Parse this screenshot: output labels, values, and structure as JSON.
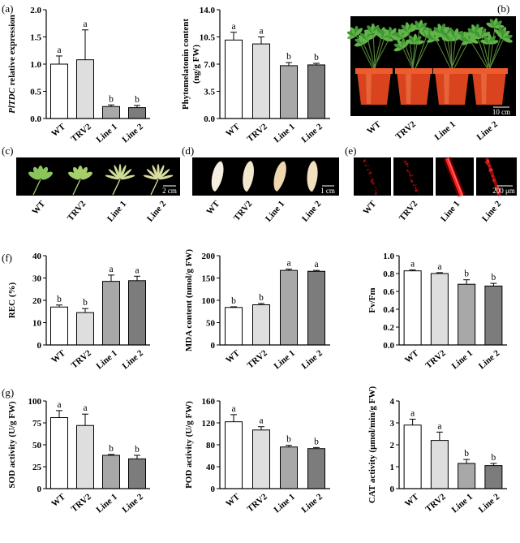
{
  "panel_labels": [
    "(a)",
    "(b)",
    "(c)",
    "(d)",
    "(e)",
    "(f)",
    "(g)"
  ],
  "bar_colors": [
    "#ffffff",
    "#dedede",
    "#a8a8a8",
    "#7c7c7c"
  ],
  "photos": {
    "b": {
      "labels": [
        "WT",
        "TRV2",
        "Line 1",
        "Line 2"
      ],
      "scale": "10 cm"
    },
    "c": {
      "labels": [
        "WT",
        "TRV2",
        "Line 1",
        "Line 2"
      ],
      "scale": "2 cm"
    },
    "d": {
      "labels": [
        "WT",
        "TRV2",
        "Line 1",
        "Line 2"
      ],
      "scale": "1 cm"
    },
    "e": {
      "labels": [
        "WT",
        "TRV2",
        "Line 1",
        "Line 2"
      ],
      "scale": "200 μm"
    }
  },
  "chart_data": [
    {
      "type": "bar",
      "categories": [
        "WT",
        "TRV2",
        "Line 1",
        "Line 2"
      ],
      "values": [
        1.0,
        1.08,
        0.22,
        0.2
      ],
      "errors": [
        0.15,
        0.55,
        0.03,
        0.04
      ],
      "letters": [
        "a",
        "a",
        "b",
        "b"
      ],
      "ylabel": [
        [
          {
            "t": "PlTDC",
            "i": true
          },
          {
            "t": " relative expression"
          }
        ]
      ],
      "ylim": [
        0,
        2.0
      ],
      "yticks": [
        "0.0",
        "0.5",
        "1.0",
        "1.5",
        "2.0"
      ]
    },
    {
      "type": "bar",
      "categories": [
        "WT",
        "TRV2",
        "Line 1",
        "Line 2"
      ],
      "values": [
        10.1,
        9.6,
        6.8,
        6.9
      ],
      "errors": [
        1.0,
        0.9,
        0.4,
        0.2
      ],
      "letters": [
        "a",
        "a",
        "b",
        "b"
      ],
      "ylabel": [
        [
          {
            "t": "Phytomelatonin content"
          }
        ],
        [
          {
            "t": "(ng/g FW)"
          }
        ]
      ],
      "ylim": [
        0,
        14.0
      ],
      "yticks": [
        "0.0",
        "3.5",
        "7.0",
        "10.5",
        "14.0"
      ]
    },
    {
      "type": "bar",
      "categories": [
        "WT",
        "TRV2",
        "Line 1",
        "Line 2"
      ],
      "values": [
        17.0,
        14.5,
        28.5,
        28.8
      ],
      "errors": [
        0.9,
        1.8,
        2.8,
        2.0
      ],
      "letters": [
        "b",
        "b",
        "a",
        "a"
      ],
      "ylabel": [
        [
          {
            "t": "REC (%)"
          }
        ]
      ],
      "ylim": [
        0,
        40
      ],
      "yticks": [
        "0",
        "10",
        "20",
        "30",
        "40"
      ]
    },
    {
      "type": "bar",
      "categories": [
        "WT",
        "TRV2",
        "Line 1",
        "Line 2"
      ],
      "values": [
        84,
        90,
        167,
        165
      ],
      "errors": [
        1.5,
        3,
        3,
        2
      ],
      "letters": [
        "b",
        "b",
        "a",
        "a"
      ],
      "ylabel": [
        [
          {
            "t": "MDA content (nmol/g FW)"
          }
        ]
      ],
      "ylim": [
        0,
        200
      ],
      "yticks": [
        "0",
        "50",
        "100",
        "150",
        "200"
      ]
    },
    {
      "type": "bar",
      "categories": [
        "WT",
        "TRV2",
        "Line 1",
        "Line 2"
      ],
      "values": [
        0.83,
        0.8,
        0.68,
        0.66
      ],
      "errors": [
        0.01,
        0.01,
        0.05,
        0.03
      ],
      "letters": [
        "a",
        "a",
        "b",
        "b"
      ],
      "ylabel": [
        [
          {
            "t": "Fv/Fm"
          }
        ]
      ],
      "ylim": [
        0,
        1.0
      ],
      "yticks": [
        "0.0",
        "0.2",
        "0.4",
        "0.6",
        "0.8",
        "1.0"
      ]
    },
    {
      "type": "bar",
      "categories": [
        "WT",
        "TRV2",
        "Line 1",
        "Line 2"
      ],
      "values": [
        81,
        72,
        38,
        34
      ],
      "errors": [
        8,
        13,
        1,
        4
      ],
      "letters": [
        "a",
        "a",
        "b",
        "b"
      ],
      "ylabel": [
        [
          {
            "t": "SOD activity (U/g FW)"
          }
        ]
      ],
      "ylim": [
        0,
        100
      ],
      "yticks": [
        "0",
        "25",
        "50",
        "75",
        "100"
      ]
    },
    {
      "type": "bar",
      "categories": [
        "WT",
        "TRV2",
        "Line 1",
        "Line 2"
      ],
      "values": [
        122,
        107,
        76,
        73
      ],
      "errors": [
        13,
        6,
        3,
        2
      ],
      "letters": [
        "a",
        "a",
        "b",
        "b"
      ],
      "ylabel": [
        [
          {
            "t": "POD activity (U/g FW)"
          }
        ]
      ],
      "ylim": [
        0,
        160
      ],
      "yticks": [
        "0",
        "40",
        "80",
        "120",
        "160"
      ]
    },
    {
      "type": "bar",
      "categories": [
        "WT",
        "TRV2",
        "Line 1",
        "Line 2"
      ],
      "values": [
        2.9,
        2.2,
        1.15,
        1.05
      ],
      "errors": [
        0.27,
        0.38,
        0.18,
        0.1
      ],
      "letters": [
        "a",
        "a",
        "b",
        "b"
      ],
      "ylabel": [
        [
          {
            "t": "CAT activity (μmol/min/g FW)"
          }
        ]
      ],
      "ylim": [
        0,
        4
      ],
      "yticks": [
        "0",
        "1",
        "2",
        "3",
        "4"
      ]
    }
  ]
}
